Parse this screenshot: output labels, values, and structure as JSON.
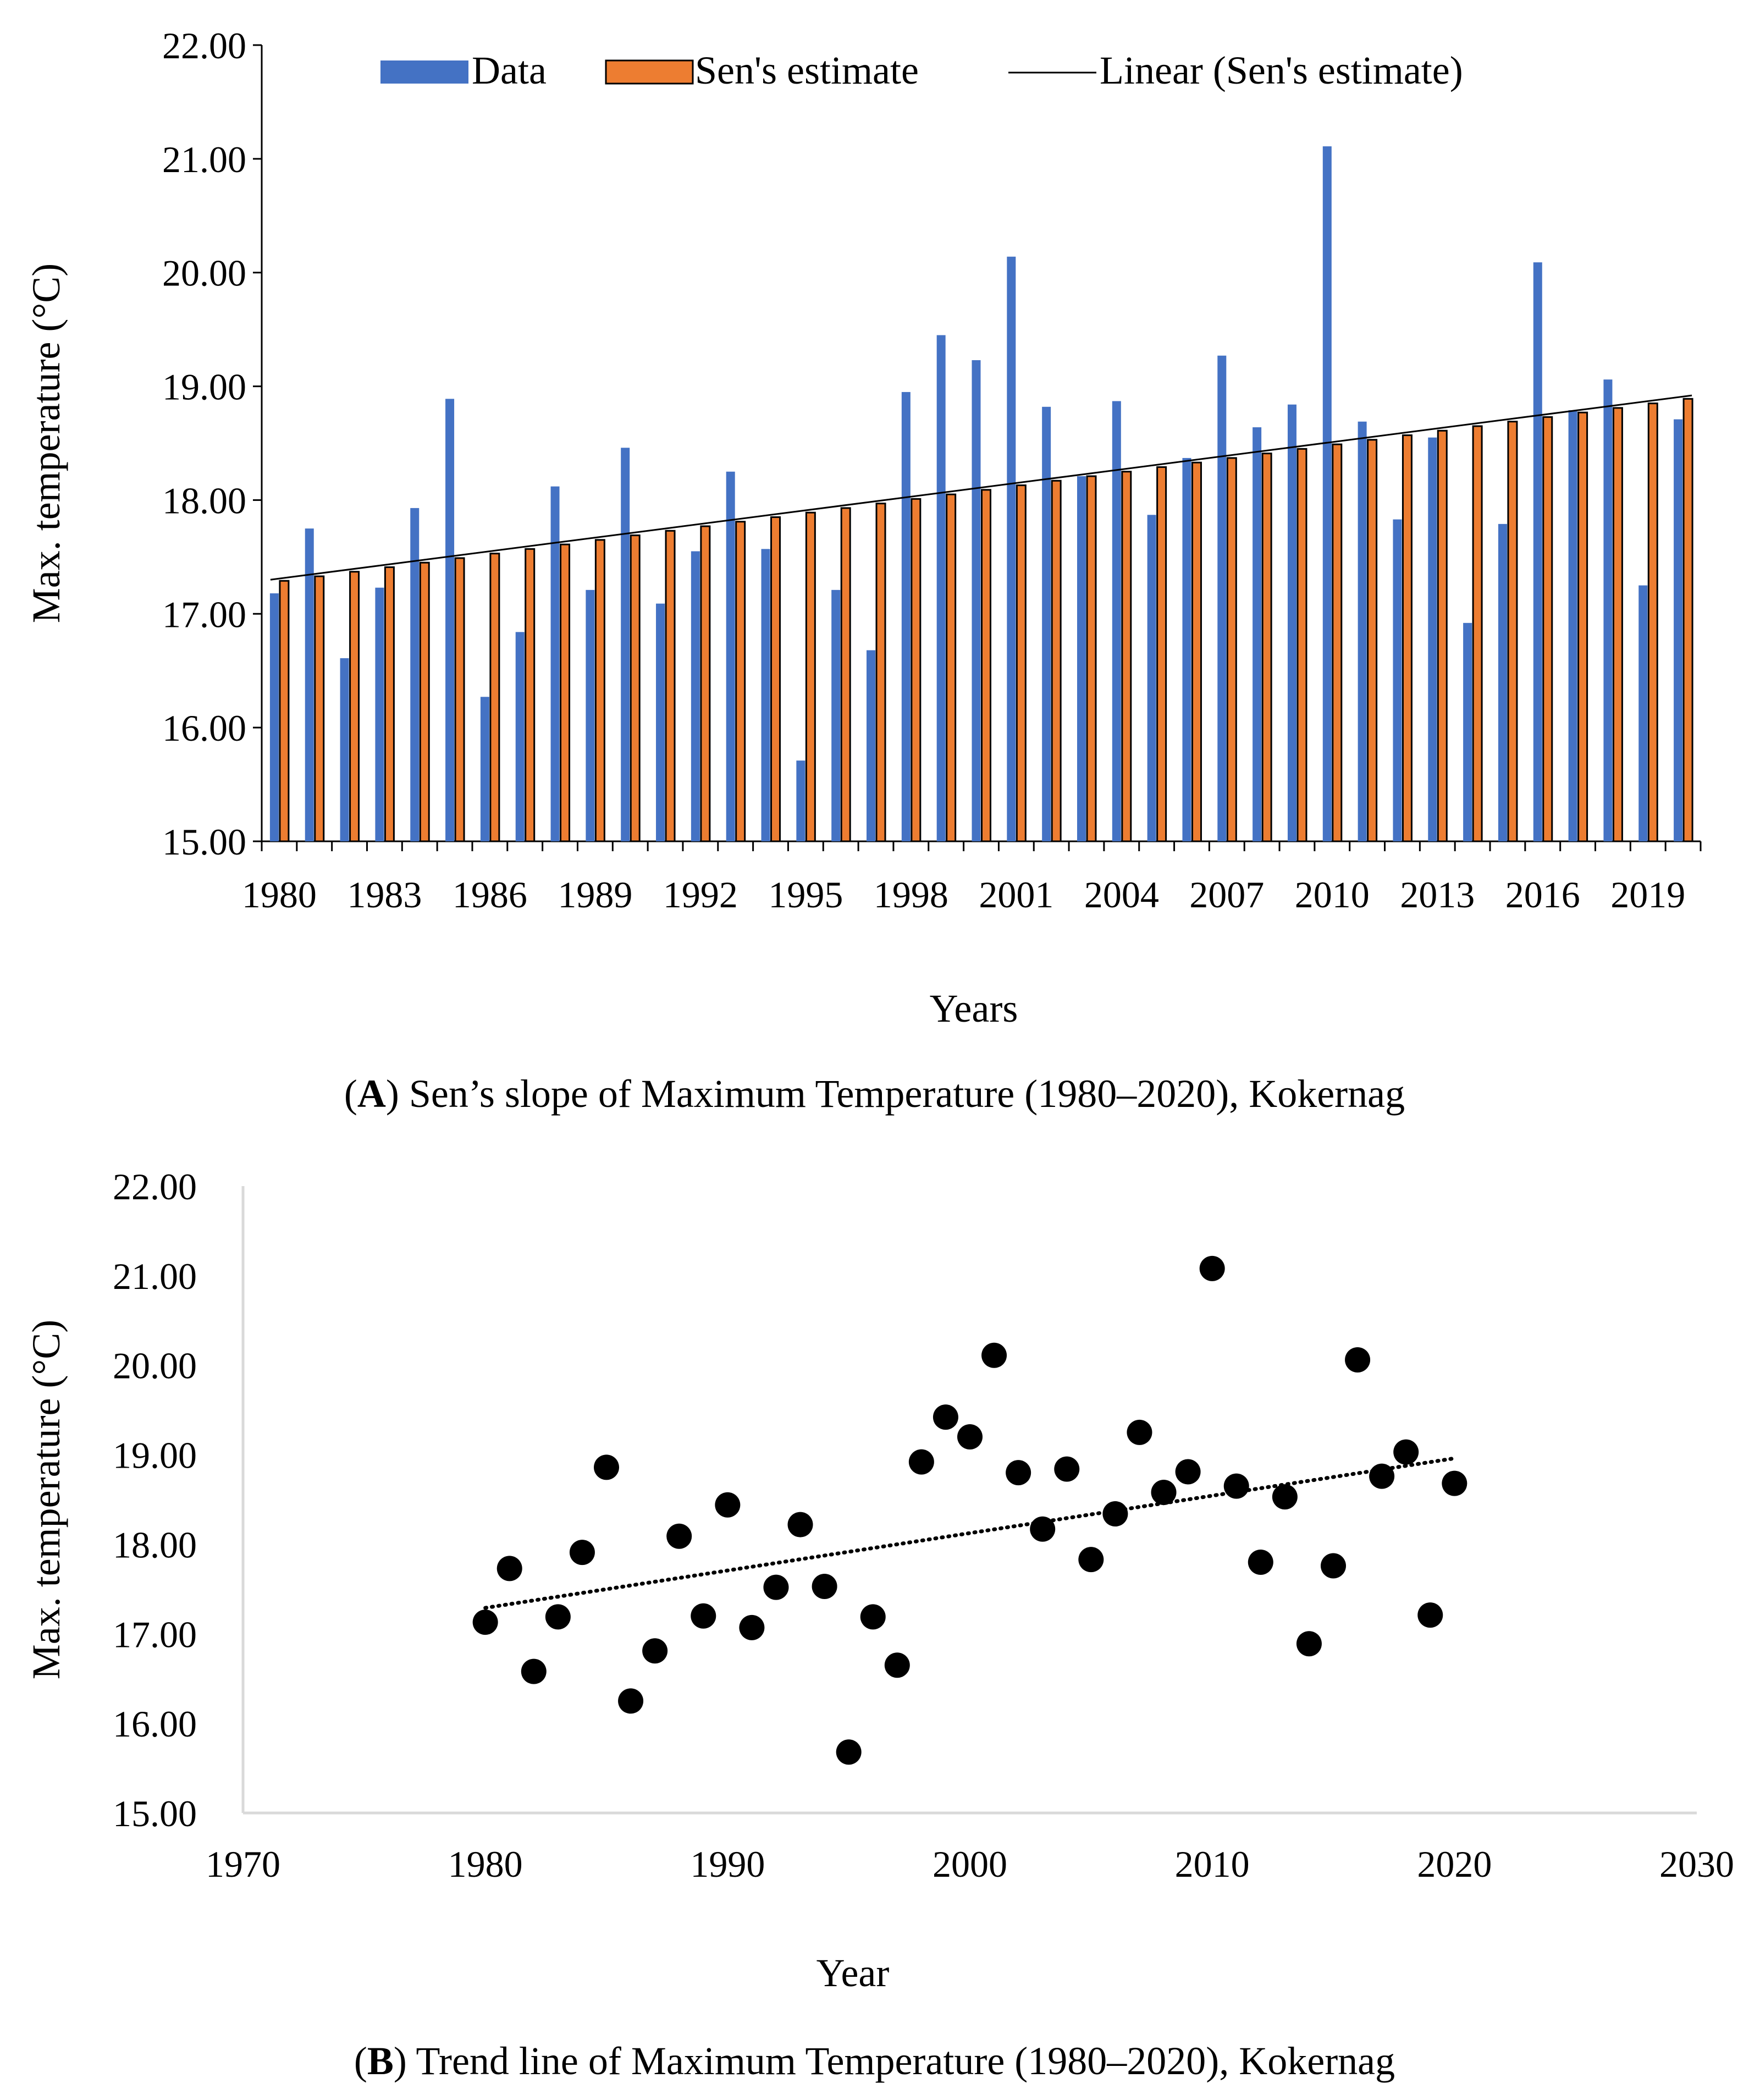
{
  "chart_data": [
    {
      "type": "bar",
      "title": "",
      "xlabel": "Years",
      "ylabel": "Max. temperature (°C)",
      "ylim": [
        15,
        22
      ],
      "yticks": [
        "15.00",
        "16.00",
        "17.00",
        "18.00",
        "19.00",
        "20.00",
        "21.00",
        "22.00"
      ],
      "xtick_labels": [
        "1980",
        "1983",
        "1986",
        "1989",
        "1992",
        "1995",
        "1998",
        "2001",
        "2004",
        "2007",
        "2010",
        "2013",
        "2016",
        "2019"
      ],
      "categories": [
        1980,
        1981,
        1982,
        1983,
        1984,
        1985,
        1986,
        1987,
        1988,
        1989,
        1990,
        1991,
        1992,
        1993,
        1994,
        1995,
        1996,
        1997,
        1998,
        1999,
        2000,
        2001,
        2002,
        2003,
        2004,
        2005,
        2006,
        2007,
        2008,
        2009,
        2010,
        2011,
        2012,
        2013,
        2014,
        2015,
        2016,
        2017,
        2018,
        2019,
        2020
      ],
      "legend": [
        "Data",
        "Sen's estimate",
        "Linear (Sen's estimate)"
      ],
      "legend_position": "top",
      "series": [
        {
          "name": "Data",
          "color": "#4472C4",
          "values": [
            17.18,
            17.75,
            16.61,
            17.23,
            17.93,
            18.89,
            16.27,
            16.84,
            18.12,
            17.21,
            18.46,
            17.09,
            17.55,
            18.25,
            17.57,
            15.71,
            17.21,
            16.68,
            18.95,
            19.45,
            19.23,
            20.14,
            18.82,
            18.21,
            18.87,
            17.87,
            18.37,
            19.27,
            18.64,
            18.84,
            21.11,
            18.69,
            17.83,
            18.55,
            16.92,
            17.79,
            20.09,
            18.79,
            19.06,
            17.25,
            18.71
          ]
        },
        {
          "name": "Sen's estimate",
          "color": "#ED7D31",
          "values": [
            17.29,
            17.33,
            17.37,
            17.41,
            17.45,
            17.49,
            17.53,
            17.57,
            17.61,
            17.65,
            17.69,
            17.73,
            17.77,
            17.81,
            17.85,
            17.89,
            17.93,
            17.97,
            18.01,
            18.05,
            18.09,
            18.13,
            18.17,
            18.21,
            18.25,
            18.29,
            18.33,
            18.37,
            18.41,
            18.45,
            18.49,
            18.53,
            18.57,
            18.61,
            18.65,
            18.69,
            18.73,
            18.77,
            18.81,
            18.85,
            18.89
          ]
        }
      ],
      "trendline": {
        "name": "Linear (Sen's estimate)",
        "start": [
          1980,
          17.3
        ],
        "end": [
          2020,
          18.92
        ]
      }
    },
    {
      "type": "scatter",
      "title": "",
      "xlabel": "Year",
      "ylabel": "Max. temperature (°C)",
      "xlim": [
        1970,
        2030
      ],
      "ylim": [
        15,
        22
      ],
      "xticks": [
        "1970",
        "1980",
        "1990",
        "2000",
        "2010",
        "2020",
        "2030"
      ],
      "yticks": [
        "15.00",
        "16.00",
        "17.00",
        "18.00",
        "19.00",
        "20.00",
        "21.00",
        "22.00"
      ],
      "x": [
        1980,
        1981,
        1982,
        1983,
        1984,
        1985,
        1986,
        1987,
        1988,
        1989,
        1990,
        1991,
        1992,
        1993,
        1994,
        1995,
        1996,
        1997,
        1998,
        1999,
        2000,
        2001,
        2002,
        2003,
        2004,
        2005,
        2006,
        2007,
        2008,
        2009,
        2010,
        2011,
        2012,
        2013,
        2014,
        2015,
        2016,
        2017,
        2018,
        2019,
        2020
      ],
      "y": [
        17.13,
        17.73,
        16.58,
        17.19,
        17.91,
        18.86,
        16.25,
        16.81,
        18.09,
        17.2,
        18.44,
        17.07,
        17.52,
        18.22,
        17.53,
        15.68,
        17.19,
        16.65,
        18.92,
        19.42,
        19.2,
        20.11,
        18.8,
        18.17,
        18.84,
        17.83,
        18.34,
        19.25,
        18.58,
        18.81,
        21.08,
        18.65,
        17.8,
        18.53,
        16.89,
        17.76,
        20.06,
        18.76,
        19.03,
        17.21,
        18.68
      ],
      "trendline": {
        "style": "dotted",
        "start": [
          1980,
          17.29
        ],
        "end": [
          2020,
          18.96
        ]
      }
    }
  ],
  "captions": {
    "a_label": "A",
    "a_text": ") Sen’s slope of Maximum Temperature (1980–2020), Kokernag",
    "b_label": "B",
    "b_text": ") Trend line of Maximum Temperature (1980–2020), Kokernag"
  }
}
